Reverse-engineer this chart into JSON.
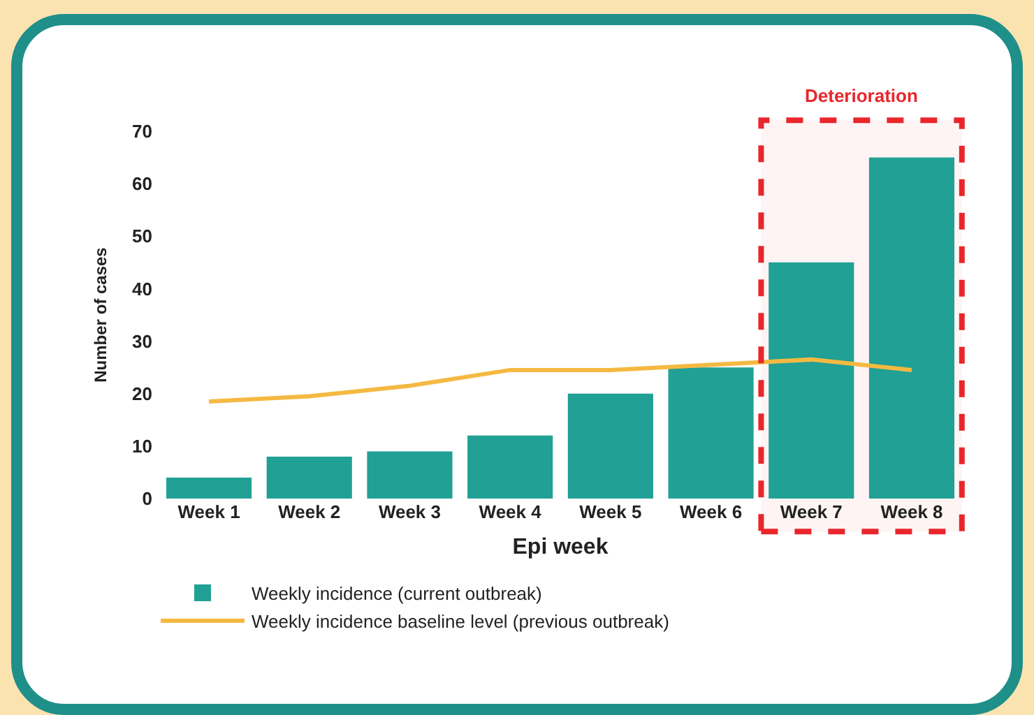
{
  "chart_data": {
    "type": "bar",
    "xlabel": "Epi week",
    "ylabel": "Number of cases",
    "categories": [
      "Week 1",
      "Week 2",
      "Week 3",
      "Week 4",
      "Week 5",
      "Week 6",
      "Week 7",
      "Week 8"
    ],
    "series": [
      {
        "name": "Weekly incidence (current outbreak)",
        "color": "#21a095",
        "values": [
          4,
          8,
          9,
          12,
          20,
          25,
          45,
          65
        ]
      },
      {
        "name": "Weekly incidence baseline level (previous outbreak)",
        "type": "line",
        "color": "#f5b942",
        "values": [
          18.5,
          19.5,
          21.5,
          24.5,
          24.5,
          25.5,
          26.5,
          24.5
        ]
      }
    ],
    "ylim": [
      0,
      70
    ],
    "yticks": [
      0,
      10,
      20,
      30,
      40,
      50,
      60,
      70
    ],
    "grid": false,
    "legend": "bottom",
    "marker": "none",
    "bands": [
      {
        "axis": "x",
        "from": "Week 7",
        "to": "Week 8",
        "label": "Deterioration",
        "color": "#e8262b"
      }
    ]
  }
}
